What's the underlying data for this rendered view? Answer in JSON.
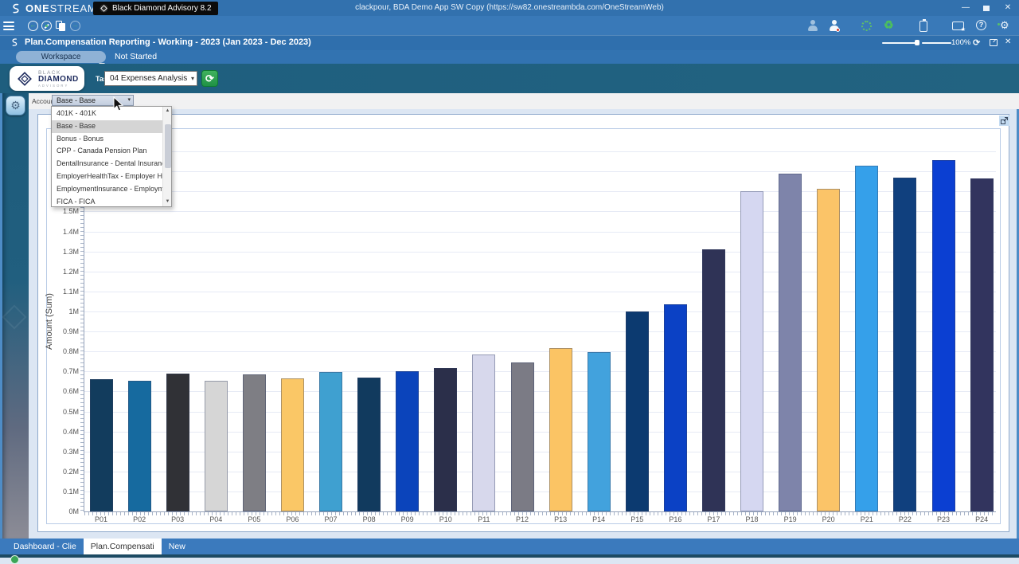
{
  "titlebar": {
    "brand_bold": "ONE",
    "brand_light": "STREAM",
    "app_tab_label": "Black Diamond Advisory 8.2",
    "center_title": "clackpour, BDA Demo App SW Copy (https://sw82.onestreambda.com/OneStreamWeb)"
  },
  "icons": {
    "minimize": "—",
    "close": "✕",
    "back_arrow": "←",
    "forward_arrow": "→",
    "question": "?",
    "gear": "⚙",
    "refresh": "⟳",
    "recycle": "♻",
    "dropdown": "▾",
    "scroll_up": "▲",
    "scroll_down": "▼",
    "star": "★"
  },
  "breadcrumb": {
    "title": "Plan.Compensation Reporting  -  Working  -  2023 (Jan 2023 - Dec 2023)",
    "zoom_level": "100%"
  },
  "status_row": {
    "workspace_label": "Workspace",
    "status_text": "Not Started"
  },
  "header_band": {
    "logo_top": "BLACK",
    "logo_mid": "DIAMOND",
    "logo_bottom": "ADVISORY",
    "task_label": "Task:",
    "task_value": "04 Expenses Analysis"
  },
  "account_filter": {
    "label": "Account:",
    "value": "Base - Base",
    "selected_option": "Base - Base",
    "options": [
      "401K - 401K",
      "Base - Base",
      "Bonus - Bonus",
      "CPP - Canada Pension Plan",
      "DentalInsurance - Dental Insurance",
      "EmployerHealthTax - Employer Health Tax",
      "EmploymentInsurance - Employment Insurance",
      "FICA - FICA"
    ]
  },
  "bottom_tabs": {
    "tabs": [
      {
        "label": "Dashboard - Clie",
        "active": false
      },
      {
        "label": "Plan.Compensati",
        "active": true
      },
      {
        "label": "New",
        "active": false
      }
    ]
  },
  "colors": {
    "top_bar_blue": "#3271AE",
    "header_teal": "#1E5E7E",
    "accent_green": "#2EA44F",
    "page_background": "#DCE6F3"
  },
  "chart_data": {
    "type": "bar",
    "title": "",
    "xlabel": "",
    "ylabel": "Amount (Sum)",
    "categories": [
      "P01",
      "P02",
      "P03",
      "P04",
      "P05",
      "P06",
      "P07",
      "P08",
      "P09",
      "P10",
      "P11",
      "P12",
      "P13",
      "P14",
      "P15",
      "P16",
      "P17",
      "P18",
      "P19",
      "P20",
      "P21",
      "P22",
      "P23",
      "P24"
    ],
    "values": [
      660000,
      654000,
      688000,
      654000,
      686000,
      665000,
      698000,
      668000,
      702000,
      716000,
      785000,
      746000,
      816000,
      796000,
      1000000,
      1035000,
      1310000,
      1600000,
      1690000,
      1615000,
      1730000,
      1670000,
      1755000,
      1665000
    ],
    "bar_colors": [
      "#123C5D",
      "#166A9F",
      "#303136",
      "#D6D6D6",
      "#7E7E84",
      "#FAC766",
      "#3FA0D0",
      "#113A5E",
      "#0B44BB",
      "#2B2F4A",
      "#D7D8EC",
      "#7B7B85",
      "#FBC464",
      "#42A2DD",
      "#0C3A70",
      "#0B41C5",
      "#2F3356",
      "#D5D7F1",
      "#7E84AA",
      "#FBC468",
      "#35A0EA",
      "#10407E",
      "#0B3FD2",
      "#32345E"
    ],
    "ylim": [
      0,
      1900000
    ],
    "ytick_interval": 100000,
    "ytick_suffix": "M",
    "grid": "horizontal",
    "legend": "none"
  }
}
